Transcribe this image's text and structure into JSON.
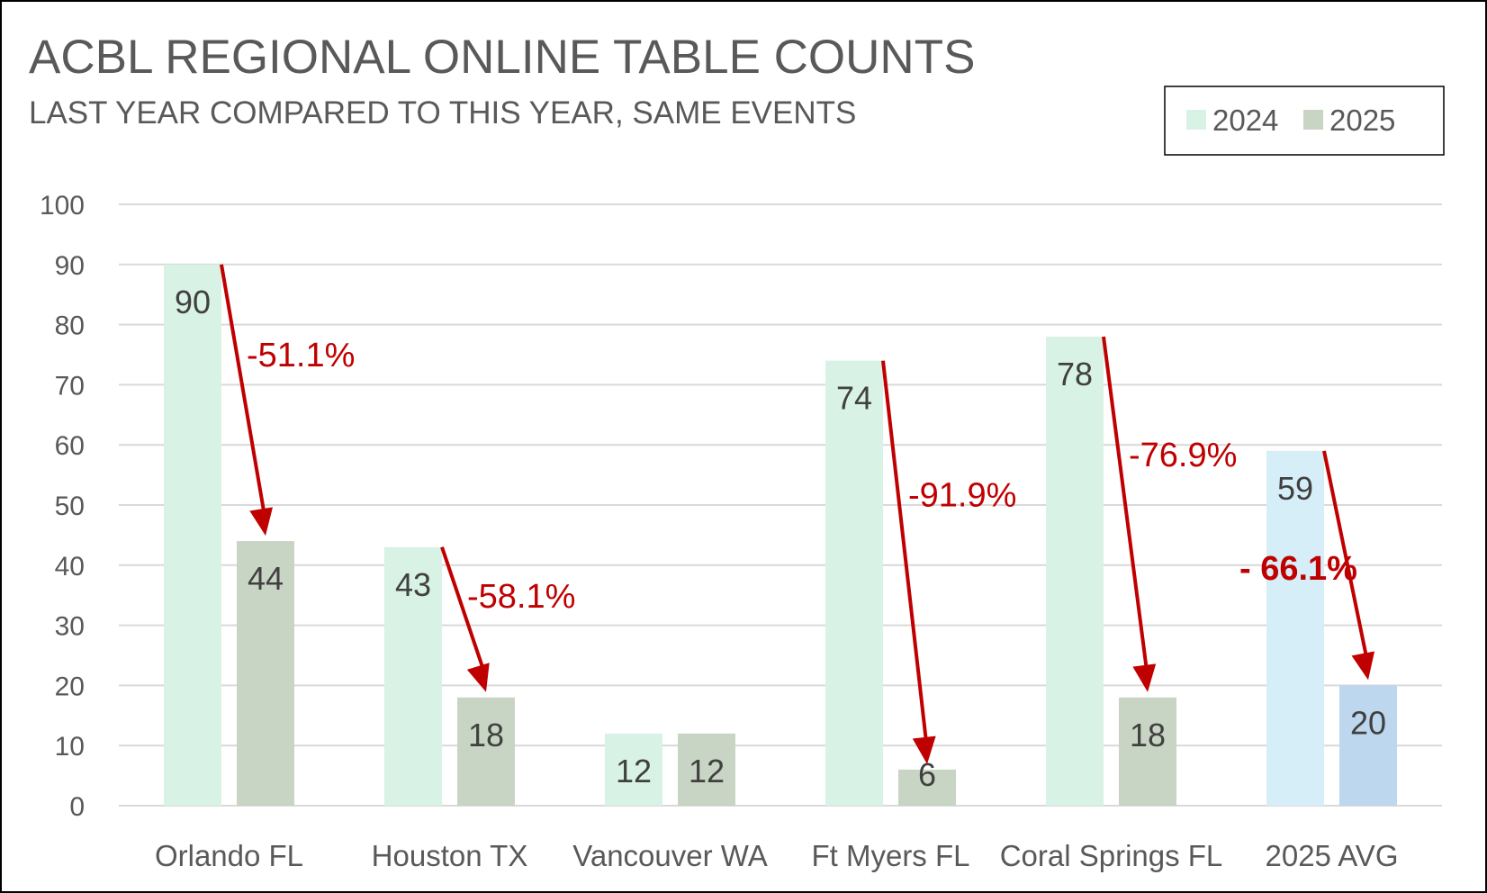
{
  "chart_data": {
    "type": "bar",
    "title": "ACBL REGIONAL ONLINE TABLE COUNTS",
    "subtitle": "LAST YEAR COMPARED TO THIS YEAR, SAME EVENTS",
    "categories": [
      "Orlando FL",
      "Houston TX",
      "Vancouver WA",
      "Ft Myers FL",
      "Coral Springs FL",
      "2025 AVG"
    ],
    "series": [
      {
        "name": "2024",
        "values": [
          90,
          43,
          12,
          74,
          78,
          59
        ],
        "color": "#d9f2e6",
        "avg_color": "#d6eef8"
      },
      {
        "name": "2025",
        "values": [
          44,
          18,
          12,
          6,
          18,
          20
        ],
        "color": "#c9d5c4",
        "avg_color": "#bdd7ee"
      }
    ],
    "ylim": [
      0,
      100
    ],
    "yticks": [
      0,
      10,
      20,
      30,
      40,
      50,
      60,
      70,
      80,
      90,
      100
    ],
    "grid": true,
    "legend_position": "top-right",
    "annotations": [
      {
        "category": "Orlando FL",
        "label": "-51.1%",
        "bold": false
      },
      {
        "category": "Houston TX",
        "label": "-58.1%",
        "bold": false
      },
      {
        "category": "Ft Myers FL",
        "label": "-91.9%",
        "bold": false
      },
      {
        "category": "Coral Springs FL",
        "label": "-76.9%",
        "bold": false
      },
      {
        "category": "2025 AVG",
        "label": "- 66.1%",
        "bold": true
      }
    ],
    "colors": {
      "text": "#595959",
      "grid": "#d9d9d9",
      "arrow": "#c00000",
      "value_label": "#404040"
    }
  }
}
